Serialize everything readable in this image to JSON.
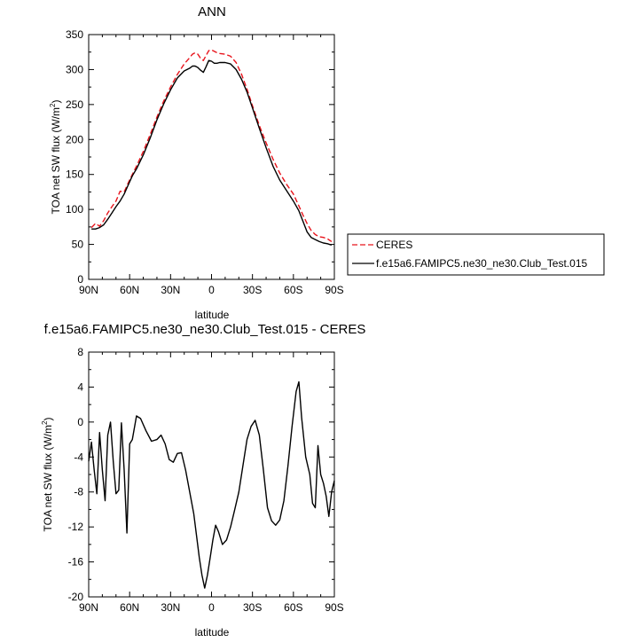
{
  "charts": [
    {
      "title": "ANN",
      "xlabel": "latitude",
      "ylabel_main": "TOA net SW flux (W/m",
      "ylabel_sup": "2",
      "ylabel_end": ")"
    },
    {
      "title": "f.e15a6.FAMIPC5.ne30_ne30.Club_Test.015 - CERES",
      "xlabel": "latitude",
      "ylabel_main": "TOA net SW flux (W/m",
      "ylabel_sup": "2",
      "ylabel_end": ")"
    }
  ],
  "legend": {
    "items": [
      {
        "label": "CERES",
        "color": "#e8141c",
        "dash": true
      },
      {
        "label": "f.e15a6.FAMIPC5.ne30_ne30.Club_Test.015",
        "color": "#000000",
        "dash": false
      }
    ]
  },
  "chart_data": [
    {
      "type": "line",
      "title": "ANN",
      "xlabel": "latitude",
      "ylabel": "TOA net SW flux (W/m2)",
      "xlim": [
        90,
        -90
      ],
      "ylim": [
        0,
        350
      ],
      "x_ticks": [
        90,
        60,
        30,
        0,
        -30,
        -60,
        -90
      ],
      "x_tick_labels": [
        "90N",
        "60N",
        "30N",
        "0",
        "30S",
        "60S",
        "90S"
      ],
      "y_ticks": [
        0,
        50,
        100,
        150,
        200,
        250,
        300,
        350
      ],
      "series": [
        {
          "name": "CERES",
          "color": "#e8141c",
          "dashed": true,
          "x": [
            88,
            85,
            82,
            79,
            76,
            73,
            70,
            67,
            64,
            61,
            58,
            55,
            50,
            45,
            40,
            35,
            30,
            25,
            20,
            16,
            14,
            12,
            10,
            8,
            6,
            4,
            2,
            0,
            -2,
            -4,
            -6,
            -10,
            -14,
            -18,
            -22,
            -26,
            -30,
            -35,
            -40,
            -45,
            -50,
            -55,
            -60,
            -64,
            -67,
            -70,
            -73,
            -76,
            -79,
            -82,
            -85,
            -88
          ],
          "y": [
            74,
            80,
            76,
            84,
            95,
            104,
            112,
            126,
            125,
            138,
            150,
            162,
            183,
            207,
            232,
            255,
            275,
            293,
            308,
            317,
            322,
            324,
            322,
            316,
            313,
            320,
            327,
            328,
            326,
            324,
            323,
            322,
            319,
            310,
            293,
            272,
            248,
            220,
            195,
            172,
            152,
            136,
            122,
            105,
            92,
            80,
            70,
            64,
            61,
            60,
            58,
            54
          ]
        },
        {
          "name": "f.e15a6.FAMIPC5.ne30_ne30.Club_Test.015",
          "color": "#000000",
          "dashed": false,
          "x": [
            88,
            85,
            82,
            79,
            76,
            73,
            70,
            67,
            64,
            61,
            58,
            55,
            50,
            45,
            40,
            35,
            30,
            25,
            20,
            16,
            14,
            12,
            10,
            8,
            6,
            4,
            2,
            0,
            -2,
            -4,
            -6,
            -10,
            -14,
            -18,
            -22,
            -26,
            -30,
            -35,
            -40,
            -45,
            -50,
            -55,
            -60,
            -64,
            -67,
            -70,
            -73,
            -76,
            -79,
            -82,
            -85,
            -88
          ],
          "y": [
            72,
            72,
            74,
            78,
            86,
            95,
            104,
            112,
            122,
            135,
            148,
            158,
            178,
            202,
            228,
            251,
            271,
            288,
            298,
            302,
            305,
            305,
            303,
            299,
            296,
            304,
            313,
            312,
            309,
            309,
            310,
            310,
            308,
            300,
            286,
            268,
            245,
            216,
            188,
            162,
            142,
            127,
            112,
            98,
            83,
            68,
            60,
            57,
            54,
            52,
            51,
            49
          ]
        }
      ]
    },
    {
      "type": "line",
      "title": "f.e15a6.FAMIPC5.ne30_ne30.Club_Test.015 - CERES",
      "xlabel": "latitude",
      "ylabel": "TOA net SW flux (W/m2)",
      "xlim": [
        90,
        -90
      ],
      "ylim": [
        -20,
        8
      ],
      "x_ticks": [
        90,
        60,
        30,
        0,
        -30,
        -60,
        -90
      ],
      "x_tick_labels": [
        "90N",
        "60N",
        "30N",
        "0",
        "30S",
        "60S",
        "90S"
      ],
      "y_ticks": [
        -20,
        -16,
        -12,
        -8,
        -4,
        0,
        4,
        8
      ],
      "series": [
        {
          "name": "f.e15a6.FAMIPC5.ne30_ne30.Club_Test.015 - CERES",
          "color": "#000000",
          "dashed": false,
          "x": [
            90,
            88,
            86,
            84,
            82,
            80,
            78,
            76,
            74,
            72,
            70,
            68,
            66,
            64,
            62,
            60,
            58,
            55,
            52,
            48,
            44,
            40,
            37,
            34,
            31,
            28,
            25,
            22,
            19,
            16,
            13,
            11,
            9,
            7,
            5,
            3,
            1,
            -1,
            -3,
            -5,
            -8,
            -11,
            -14,
            -17,
            -20,
            -23,
            -26,
            -29,
            -32,
            -35,
            -38,
            -41,
            -44,
            -47,
            -50,
            -53,
            -56,
            -59,
            -62,
            -64,
            -66,
            -69,
            -72,
            -74,
            -76,
            -78,
            -80,
            -82,
            -84,
            -86,
            -88,
            -90
          ],
          "y": [
            -4.5,
            -2.3,
            -5.5,
            -8.2,
            -1.2,
            -5.5,
            -9.0,
            -1.5,
            0.0,
            -4.5,
            -8.2,
            -7.8,
            -0.1,
            -5.5,
            -12.7,
            -2.5,
            -2.0,
            0.7,
            0.4,
            -1.0,
            -2.2,
            -2.0,
            -1.5,
            -2.5,
            -4.3,
            -4.6,
            -3.6,
            -3.5,
            -5.5,
            -8.0,
            -10.5,
            -13.0,
            -15.5,
            -17.5,
            -19.0,
            -17.5,
            -15.5,
            -13.5,
            -11.8,
            -12.5,
            -14.0,
            -13.5,
            -12.0,
            -10.0,
            -8.0,
            -5.0,
            -2.0,
            -0.5,
            0.2,
            -1.5,
            -5.5,
            -9.8,
            -11.3,
            -11.8,
            -11.2,
            -9.0,
            -5.0,
            -0.5,
            3.5,
            4.6,
            0.5,
            -4.0,
            -6.0,
            -9.3,
            -9.8,
            -2.7,
            -6.0,
            -7.0,
            -8.5,
            -10.8,
            -8.0,
            -6.7
          ]
        }
      ]
    }
  ]
}
